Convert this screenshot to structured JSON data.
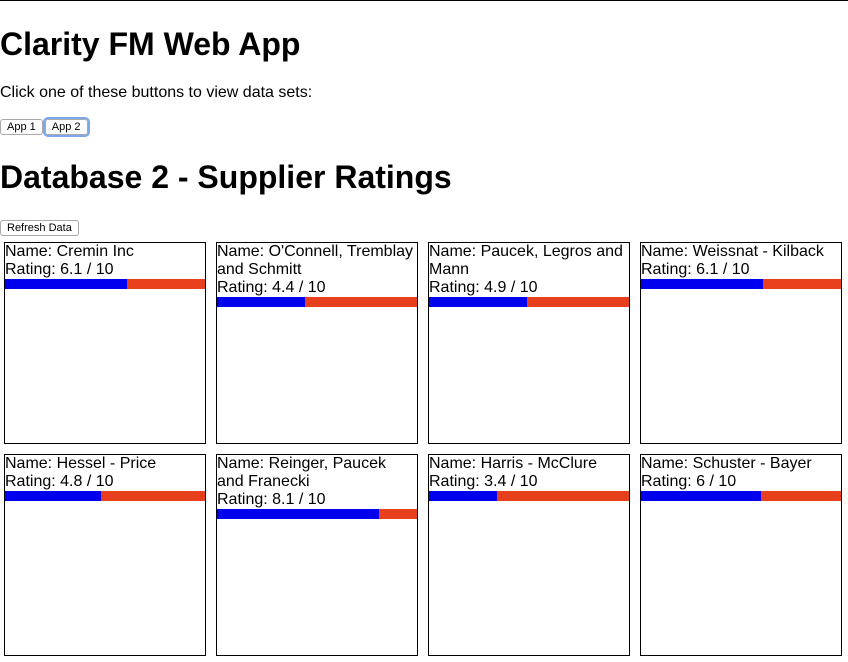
{
  "app": {
    "title": "Clarity FM Web App",
    "intro": "Click one of these buttons to view data sets:"
  },
  "app_buttons": [
    {
      "label": "App 1",
      "focused": false
    },
    {
      "label": "App 2",
      "focused": true
    }
  ],
  "database": {
    "title": "Database 2 - Supplier Ratings",
    "refresh_label": "Refresh Data"
  },
  "colors": {
    "bar_fill": "#0000ee",
    "bar_rest": "#e8401c",
    "focus_ring": "#7ea6ee"
  },
  "suppliers": [
    {
      "name": "Name: Cremin Inc",
      "rating": "Rating: 6.1 / 10",
      "rating_value": 6.1
    },
    {
      "name": "Name: O'Connell, Tremblay and Schmitt",
      "rating": "Rating: 4.4 / 10",
      "rating_value": 4.4
    },
    {
      "name": "Name: Paucek, Legros and Mann",
      "rating": "Rating: 4.9 / 10",
      "rating_value": 4.9
    },
    {
      "name": "Name: Weissnat - Kilback",
      "rating": "Rating: 6.1 / 10",
      "rating_value": 6.1
    },
    {
      "name": "Name: Hessel - Price",
      "rating": "Rating: 4.8 / 10",
      "rating_value": 4.8
    },
    {
      "name": "Name: Reinger, Paucek and Franecki",
      "rating": "Rating: 8.1 / 10",
      "rating_value": 8.1
    },
    {
      "name": "Name: Harris - McClure",
      "rating": "Rating: 3.4 / 10",
      "rating_value": 3.4
    },
    {
      "name": "Name: Schuster - Bayer",
      "rating": "Rating: 6 / 10",
      "rating_value": 6
    }
  ]
}
